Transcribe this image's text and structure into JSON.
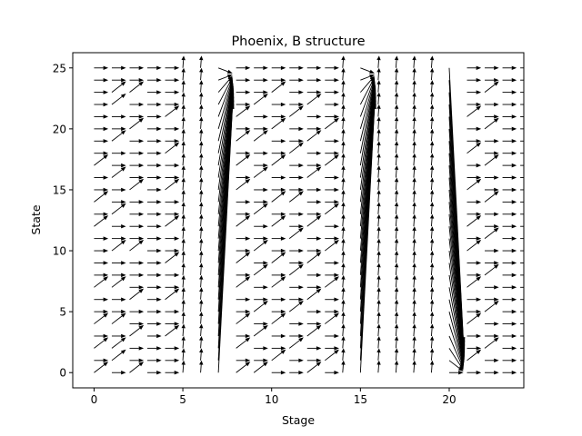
{
  "chart_data": {
    "type": "quiver",
    "title": "Phoenix, B structure",
    "xlabel": "Stage",
    "ylabel": "State",
    "xlim": [
      -1.2,
      24.2
    ],
    "ylim": [
      -1.25,
      26.25
    ],
    "xticks": [
      0,
      5,
      10,
      15,
      20
    ],
    "yticks": [
      0,
      5,
      10,
      15,
      20,
      25
    ],
    "xtick_labels": [
      "0",
      "5",
      "10",
      "15",
      "20"
    ],
    "ytick_labels": [
      "0",
      "5",
      "10",
      "15",
      "20",
      "25"
    ],
    "grid": false,
    "arrow_color": "#000000",
    "stages": [
      0,
      24
    ],
    "states": [
      0,
      25
    ],
    "vertical_transition_stages": [
      5,
      6,
      7,
      14,
      15,
      16,
      17,
      18,
      19
    ],
    "converging_stages": [
      7,
      15,
      20
    ],
    "converge_targets": {
      "7": 24.5,
      "15": 24.5,
      "20": 0
    },
    "diagonal_transitions": [
      {
        "stage": 0,
        "states": [
          0,
          2,
          4,
          7,
          12,
          14,
          17
        ]
      },
      {
        "stage": 1,
        "states": [
          1,
          2,
          4,
          7,
          10,
          13,
          16,
          19,
          22,
          23
        ]
      },
      {
        "stage": 2,
        "states": [
          0,
          3,
          6,
          10,
          15,
          20,
          23
        ]
      },
      {
        "stage": 4,
        "states": [
          3,
          6,
          9,
          12,
          15,
          18,
          21
        ]
      },
      {
        "stage": 8,
        "states": [
          0,
          2,
          4,
          7,
          9,
          12,
          15,
          17,
          19,
          21
        ]
      },
      {
        "stage": 9,
        "states": [
          0,
          3,
          5,
          8,
          10,
          13,
          16,
          19,
          22
        ]
      },
      {
        "stage": 10,
        "states": [
          1,
          4,
          7,
          9,
          12,
          14,
          17,
          20,
          23
        ]
      },
      {
        "stage": 11,
        "states": [
          2,
          5,
          8,
          11,
          14,
          18,
          21
        ]
      },
      {
        "stage": 12,
        "states": [
          0,
          3,
          6,
          9,
          12,
          16,
          19,
          22
        ]
      },
      {
        "stage": 13,
        "states": [
          1,
          4,
          7,
          10,
          13,
          17,
          20
        ]
      },
      {
        "stage": 21,
        "states": [
          1,
          4,
          7,
          10,
          12,
          15,
          18,
          21
        ]
      },
      {
        "stage": 22,
        "states": [
          2,
          5,
          8,
          11,
          14,
          17,
          20,
          23
        ]
      }
    ]
  }
}
